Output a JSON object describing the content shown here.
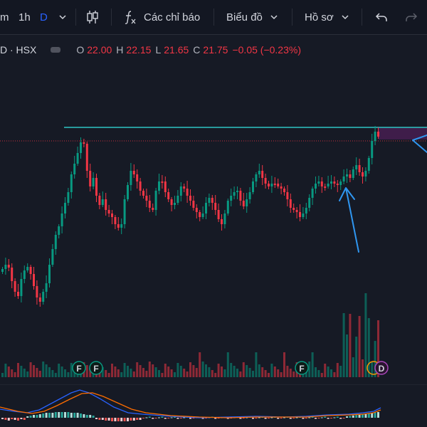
{
  "toolbar": {
    "interval_partial": "m",
    "interval_1h": "1h",
    "interval_d": "D",
    "indicators_label": "Các chỉ báo",
    "chart_label": "Biểu đồ",
    "profile_label": "Hồ sơ"
  },
  "legend": {
    "symbol_partial": "D · HSX",
    "o_label": "O",
    "o_value": "22.00",
    "h_label": "H",
    "h_value": "22.15",
    "l_label": "L",
    "l_value": "21.65",
    "c_label": "C",
    "c_value": "21.75",
    "change": "−0.05 (−0.23%)"
  },
  "events": {
    "f_label": "F",
    "d_label": "D"
  },
  "colors": {
    "up": "#089981",
    "down": "#f23645",
    "resistance": "#2ec4c4",
    "annotation_arrow": "#2f96f0",
    "macd_line": "#2962ff",
    "signal_line": "#ff6d00"
  }
}
